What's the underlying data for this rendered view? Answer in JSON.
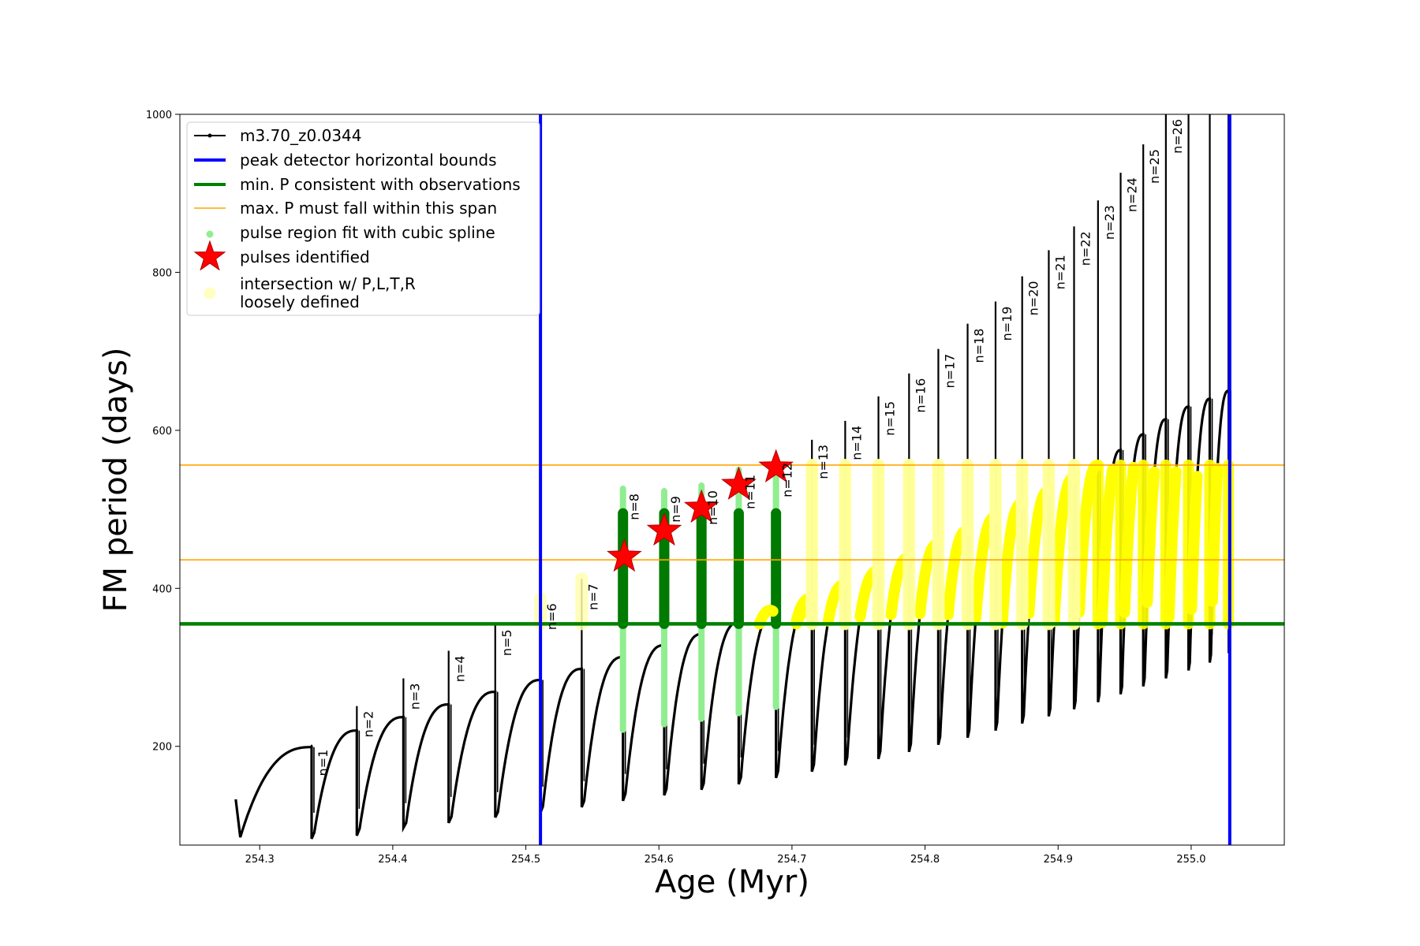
{
  "chart_data": {
    "type": "line",
    "xlabel": "Age (Myr)",
    "ylabel": "FM period (days)",
    "xlim": [
      254.24,
      255.07
    ],
    "ylim": [
      75,
      1000
    ],
    "x_ticks": [
      254.3,
      254.4,
      254.5,
      254.6,
      254.7,
      254.8,
      254.9,
      255.0
    ],
    "x_tick_labels": [
      "254.3",
      "254.4",
      "254.5",
      "254.6",
      "254.7",
      "254.8",
      "254.9",
      "255.0"
    ],
    "y_ticks": [
      200,
      400,
      600,
      800,
      1000
    ],
    "y_tick_labels": [
      "200",
      "400",
      "600",
      "800",
      "1000"
    ],
    "grid": false,
    "legend_position": "top-left",
    "colors": {
      "model": "#000000",
      "bounds": "#0000ff",
      "min_p": "#008000",
      "max_p": "#ffa500",
      "spline": "#90ee90",
      "pulse_marker": "#ff0000",
      "intersection": "#ffff00",
      "loose": "#ffffb0"
    },
    "legend": [
      {
        "label": "m3.70_z0.0344",
        "kind": "line-marker",
        "color": "#000000"
      },
      {
        "label": "peak detector horizontal bounds",
        "kind": "line",
        "color": "#0000ff"
      },
      {
        "label": "min. P consistent with observations",
        "kind": "line",
        "color": "#008000"
      },
      {
        "label": "max. P must fall within this span",
        "kind": "thin-line",
        "color": "#ffa500"
      },
      {
        "label": "pulse region fit with cubic spline",
        "kind": "dot",
        "color": "#90ee90"
      },
      {
        "label": "pulses identified",
        "kind": "star",
        "color": "#ff0000"
      },
      {
        "label": "intersection w/ P,L,T,R",
        "label2": "loosely defined",
        "kind": "dot-big",
        "color": "#ffff00"
      }
    ],
    "vertical_bounds": [
      254.511,
      255.029
    ],
    "min_p_line": 355,
    "max_p_span": [
      436,
      556
    ],
    "pulses": [
      {
        "n": "n=1",
        "age": 254.339,
        "peak": 199,
        "max": 202,
        "min": 91,
        "start": 83
      },
      {
        "n": "n=2",
        "age": 254.373,
        "peak": 220,
        "max": 251,
        "min": 96,
        "start": 87
      },
      {
        "n": "n=3",
        "age": 254.408,
        "peak": 237,
        "max": 286,
        "min": 103,
        "start": 97
      },
      {
        "n": "n=4",
        "age": 254.442,
        "peak": 253,
        "max": 321,
        "min": 111,
        "start": 103
      },
      {
        "n": "n=5",
        "age": 254.477,
        "peak": 269,
        "max": 354,
        "min": 117,
        "start": 110
      },
      {
        "n": "n=6",
        "age": 254.511,
        "peak": 284,
        "max": 387,
        "min": 124,
        "start": 116
      },
      {
        "n": "n=7",
        "age": 254.542,
        "peak": 298,
        "max": 412,
        "min": 131,
        "start": 123
      },
      {
        "n": "n=8",
        "age": 254.573,
        "peak": 313,
        "max": 526,
        "min": 140,
        "start": 131
      },
      {
        "n": "n=9",
        "age": 254.604,
        "peak": 328,
        "max": 523,
        "min": 146,
        "start": 138
      },
      {
        "n": "n=10",
        "age": 254.632,
        "peak": 342,
        "max": 530,
        "min": 153,
        "start": 145
      },
      {
        "n": "n=11",
        "age": 254.66,
        "peak": 357,
        "max": 550,
        "min": 161,
        "start": 152
      },
      {
        "n": "n=12",
        "age": 254.688,
        "peak": 372,
        "max": 565,
        "min": 169,
        "start": 160
      },
      {
        "n": "n=13",
        "age": 254.715,
        "peak": 388,
        "max": 588,
        "min": 177,
        "start": 168
      },
      {
        "n": "n=14",
        "age": 254.74,
        "peak": 405,
        "max": 612,
        "min": 186,
        "start": 176
      },
      {
        "n": "n=15",
        "age": 254.765,
        "peak": 422,
        "max": 643,
        "min": 194,
        "start": 184
      },
      {
        "n": "n=16",
        "age": 254.788,
        "peak": 439,
        "max": 672,
        "min": 203,
        "start": 193
      },
      {
        "n": "n=17",
        "age": 254.81,
        "peak": 456,
        "max": 703,
        "min": 212,
        "start": 202
      },
      {
        "n": "n=18",
        "age": 254.832,
        "peak": 473,
        "max": 735,
        "min": 221,
        "start": 211
      },
      {
        "n": "n=19",
        "age": 254.853,
        "peak": 490,
        "max": 763,
        "min": 230,
        "start": 220
      },
      {
        "n": "n=20",
        "age": 254.873,
        "peak": 507,
        "max": 795,
        "min": 239,
        "start": 229
      },
      {
        "n": "n=21",
        "age": 254.893,
        "peak": 523,
        "max": 828,
        "min": 248,
        "start": 238
      },
      {
        "n": "n=22",
        "age": 254.912,
        "peak": 540,
        "max": 858,
        "min": 257,
        "start": 247
      },
      {
        "n": "n=23",
        "age": 254.93,
        "peak": 556,
        "max": 891,
        "min": 266,
        "start": 256
      },
      {
        "n": "n=24",
        "age": 254.947,
        "peak": 575,
        "max": 926,
        "min": 276,
        "start": 266
      },
      {
        "n": "n=25",
        "age": 254.964,
        "peak": 595,
        "max": 962,
        "min": 286,
        "start": 276
      },
      {
        "n": "n=26",
        "age": 254.981,
        "peak": 614,
        "max": 1000,
        "min": 296,
        "start": 286
      },
      {
        "n": "",
        "age": 254.998,
        "peak": 630,
        "max": 1000,
        "min": 306,
        "start": 296
      },
      {
        "n": "",
        "age": 255.014,
        "peak": 640,
        "max": 1000,
        "min": 316,
        "start": 306
      },
      {
        "n": "",
        "age": 255.028,
        "peak": 650,
        "max": 1000,
        "min": 328,
        "start": 318
      }
    ],
    "first_age": 254.282,
    "first_value": 133,
    "identified_pulses": [
      {
        "age": 254.574,
        "value": 440
      },
      {
        "age": 254.604,
        "value": 473
      },
      {
        "age": 254.632,
        "value": 502
      },
      {
        "age": 254.66,
        "value": 531
      },
      {
        "age": 254.688,
        "value": 553
      }
    ]
  }
}
